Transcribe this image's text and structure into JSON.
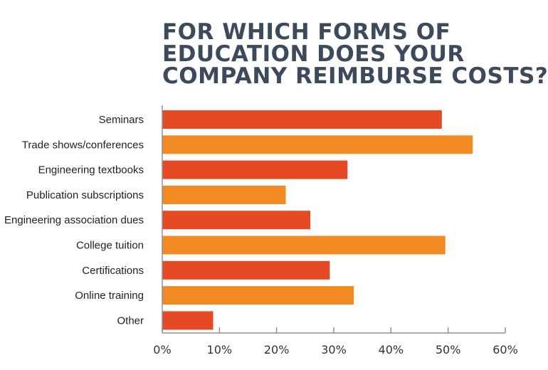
{
  "chart_data": {
    "type": "bar",
    "orientation": "horizontal",
    "title_lines": [
      "FOR WHICH FORMS OF",
      "EDUCATION DOES YOUR",
      "COMPANY REIMBURSE COSTS?"
    ],
    "categories": [
      "Seminars",
      "Trade shows/conferences",
      "Engineering textbooks",
      "Publication subscriptions",
      "Engineering association dues",
      "College tuition",
      "Certifications",
      "Online training",
      "Other"
    ],
    "values": [
      48.9,
      54.3,
      32.4,
      21.6,
      25.9,
      49.5,
      29.3,
      33.5,
      8.9
    ],
    "xlim": [
      0,
      60
    ],
    "xticks": [
      "0%",
      "10%",
      "20%",
      "30%",
      "40%",
      "50%",
      "60%"
    ],
    "xlabel": "",
    "ylabel": "",
    "grid": false,
    "colors": [
      "#e64a24",
      "#f28a24"
    ]
  }
}
